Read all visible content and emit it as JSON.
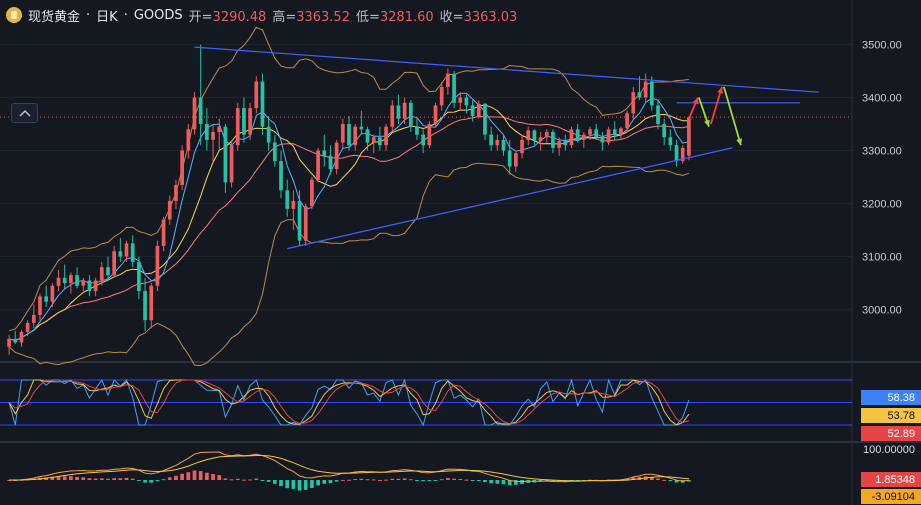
{
  "header": {
    "symbol": "现货黄金",
    "sep": "·",
    "interval": "日K",
    "source": "GOODS",
    "open_label": "开=",
    "open": "3290.48",
    "high_label": "高=",
    "high": "3363.52",
    "low_label": "低=",
    "low": "3281.60",
    "close_label": "收=",
    "close": "3363.03"
  },
  "icons": {
    "collapse": "chevron-up-icon",
    "logo": "gold-coin-icon"
  },
  "colors": {
    "background": "#141821",
    "up": "#f05b5b",
    "down": "#22c3a6",
    "trendline": "#3f63ff",
    "ma_fast": "#58b2ff",
    "ma_mid": "#ffd54a",
    "ma_slow": "#ff7a7a",
    "bollinger": "#c08a4a",
    "arrow_red": "#ff3b3b",
    "arrow_green": "#a3d937"
  },
  "chart_data": [
    {
      "type": "candlestick",
      "panel": "price",
      "y_axis_ticks": [
        "3500.00",
        "3400.00",
        "3300.00",
        "3200.00",
        "3100.00",
        "3000.00"
      ],
      "ylim": [
        2905,
        3565
      ],
      "last_price": 3363.03,
      "candles": [
        [
          2930,
          2952,
          2915,
          2945
        ],
        [
          2945,
          2960,
          2935,
          2938
        ],
        [
          2938,
          2962,
          2930,
          2958
        ],
        [
          2958,
          2980,
          2950,
          2975
        ],
        [
          2975,
          3010,
          2965,
          2990
        ],
        [
          2990,
          3030,
          2980,
          3025
        ],
        [
          3025,
          3045,
          3005,
          3015
        ],
        [
          3015,
          3050,
          3005,
          3045
        ],
        [
          3045,
          3075,
          3035,
          3060
        ],
        [
          3060,
          3085,
          3040,
          3050
        ],
        [
          3050,
          3070,
          3030,
          3065
        ],
        [
          3065,
          3080,
          3040,
          3045
        ],
        [
          3045,
          3060,
          3035,
          3055
        ],
        [
          3055,
          3065,
          3025,
          3035
        ],
        [
          3035,
          3060,
          3025,
          3055
        ],
        [
          3055,
          3090,
          3045,
          3080
        ],
        [
          3080,
          3100,
          3055,
          3065
        ],
        [
          3065,
          3120,
          3060,
          3110
        ],
        [
          3110,
          3135,
          3090,
          3100
        ],
        [
          3100,
          3130,
          3090,
          3125
        ],
        [
          3125,
          3140,
          3080,
          3090
        ],
        [
          3090,
          3100,
          3020,
          3035
        ],
        [
          3035,
          3060,
          2960,
          2980
        ],
        [
          2980,
          3050,
          2965,
          3045
        ],
        [
          3045,
          3130,
          3035,
          3120
        ],
        [
          3120,
          3175,
          3110,
          3170
        ],
        [
          3170,
          3215,
          3160,
          3205
        ],
        [
          3205,
          3245,
          3190,
          3235
        ],
        [
          3235,
          3310,
          3225,
          3300
        ],
        [
          3300,
          3350,
          3285,
          3340
        ],
        [
          3340,
          3410,
          3330,
          3400
        ],
        [
          3400,
          3500,
          3310,
          3350
        ],
        [
          3350,
          3380,
          3300,
          3320
        ],
        [
          3320,
          3350,
          3280,
          3335
        ],
        [
          3335,
          3360,
          3300,
          3345
        ],
        [
          3345,
          3350,
          3220,
          3240
        ],
        [
          3240,
          3320,
          3230,
          3310
        ],
        [
          3310,
          3390,
          3300,
          3380
        ],
        [
          3380,
          3400,
          3315,
          3330
        ],
        [
          3330,
          3390,
          3320,
          3380
        ],
        [
          3380,
          3440,
          3370,
          3430
        ],
        [
          3430,
          3445,
          3330,
          3345
        ],
        [
          3345,
          3365,
          3300,
          3315
        ],
        [
          3315,
          3330,
          3270,
          3280
        ],
        [
          3280,
          3300,
          3210,
          3225
        ],
        [
          3225,
          3245,
          3175,
          3190
        ],
        [
          3190,
          3225,
          3150,
          3205
        ],
        [
          3205,
          3225,
          3120,
          3130
        ],
        [
          3130,
          3200,
          3120,
          3195
        ],
        [
          3195,
          3250,
          3190,
          3245
        ],
        [
          3245,
          3305,
          3240,
          3300
        ],
        [
          3300,
          3330,
          3270,
          3290
        ],
        [
          3290,
          3310,
          3255,
          3265
        ],
        [
          3265,
          3320,
          3255,
          3315
        ],
        [
          3315,
          3360,
          3305,
          3350
        ],
        [
          3350,
          3365,
          3300,
          3310
        ],
        [
          3310,
          3350,
          3300,
          3345
        ],
        [
          3345,
          3375,
          3330,
          3340
        ],
        [
          3340,
          3345,
          3300,
          3315
        ],
        [
          3315,
          3330,
          3295,
          3325
        ],
        [
          3325,
          3345,
          3300,
          3310
        ],
        [
          3310,
          3350,
          3300,
          3345
        ],
        [
          3345,
          3395,
          3335,
          3385
        ],
        [
          3385,
          3405,
          3350,
          3360
        ],
        [
          3360,
          3400,
          3350,
          3390
        ],
        [
          3390,
          3395,
          3335,
          3345
        ],
        [
          3345,
          3360,
          3320,
          3330
        ],
        [
          3330,
          3340,
          3295,
          3310
        ],
        [
          3310,
          3355,
          3305,
          3350
        ],
        [
          3350,
          3390,
          3345,
          3385
        ],
        [
          3385,
          3430,
          3375,
          3420
        ],
        [
          3420,
          3455,
          3405,
          3445
        ],
        [
          3445,
          3450,
          3380,
          3390
        ],
        [
          3390,
          3410,
          3375,
          3400
        ],
        [
          3400,
          3405,
          3370,
          3385
        ],
        [
          3385,
          3395,
          3355,
          3365
        ],
        [
          3365,
          3395,
          3360,
          3388
        ],
        [
          3388,
          3390,
          3320,
          3330
        ],
        [
          3330,
          3345,
          3300,
          3310
        ],
        [
          3310,
          3330,
          3300,
          3320
        ],
        [
          3320,
          3330,
          3290,
          3300
        ],
        [
          3300,
          3320,
          3255,
          3270
        ],
        [
          3270,
          3300,
          3260,
          3295
        ],
        [
          3295,
          3330,
          3285,
          3320
        ],
        [
          3320,
          3345,
          3310,
          3338
        ],
        [
          3338,
          3340,
          3310,
          3318
        ],
        [
          3318,
          3335,
          3300,
          3325
        ],
        [
          3325,
          3340,
          3315,
          3335
        ],
        [
          3335,
          3340,
          3295,
          3305
        ],
        [
          3305,
          3325,
          3290,
          3318
        ],
        [
          3318,
          3330,
          3300,
          3310
        ],
        [
          3310,
          3345,
          3305,
          3340
        ],
        [
          3340,
          3350,
          3315,
          3320
        ],
        [
          3320,
          3335,
          3305,
          3330
        ],
        [
          3330,
          3345,
          3320,
          3340
        ],
        [
          3340,
          3350,
          3320,
          3325
        ],
        [
          3325,
          3335,
          3300,
          3315
        ],
        [
          3315,
          3345,
          3310,
          3340
        ],
        [
          3340,
          3355,
          3320,
          3330
        ],
        [
          3330,
          3345,
          3320,
          3342
        ],
        [
          3342,
          3375,
          3335,
          3370
        ],
        [
          3370,
          3420,
          3360,
          3410
        ],
        [
          3410,
          3440,
          3395,
          3400
        ],
        [
          3400,
          3445,
          3390,
          3430
        ],
        [
          3430,
          3440,
          3375,
          3385
        ],
        [
          3385,
          3395,
          3340,
          3350
        ],
        [
          3350,
          3360,
          3310,
          3325
        ],
        [
          3325,
          3340,
          3300,
          3310
        ],
        [
          3310,
          3320,
          3270,
          3280
        ],
        [
          3280,
          3310,
          3275,
          3305
        ],
        [
          3290.48,
          3363.52,
          3281.6,
          3363.03
        ]
      ],
      "annotations": [
        {
          "type": "trendline",
          "from": [
            30,
            3495
          ],
          "to": [
            131,
            3410
          ]
        },
        {
          "type": "trendline",
          "from": [
            45,
            3115
          ],
          "to": [
            117,
            3305
          ]
        },
        {
          "type": "hline",
          "value": 3390
        },
        {
          "type": "hline",
          "value": 3363.03,
          "style": "dotted"
        }
      ]
    },
    {
      "type": "line",
      "panel": "oscillator",
      "series_values_last": [
        "58.38",
        "53.78",
        "52.89"
      ],
      "levels": [
        80,
        50,
        20
      ]
    },
    {
      "type": "bar",
      "panel": "macd",
      "axis_label": "100.00000",
      "series_values_last": [
        "1.85348",
        "-3.09104"
      ]
    }
  ]
}
